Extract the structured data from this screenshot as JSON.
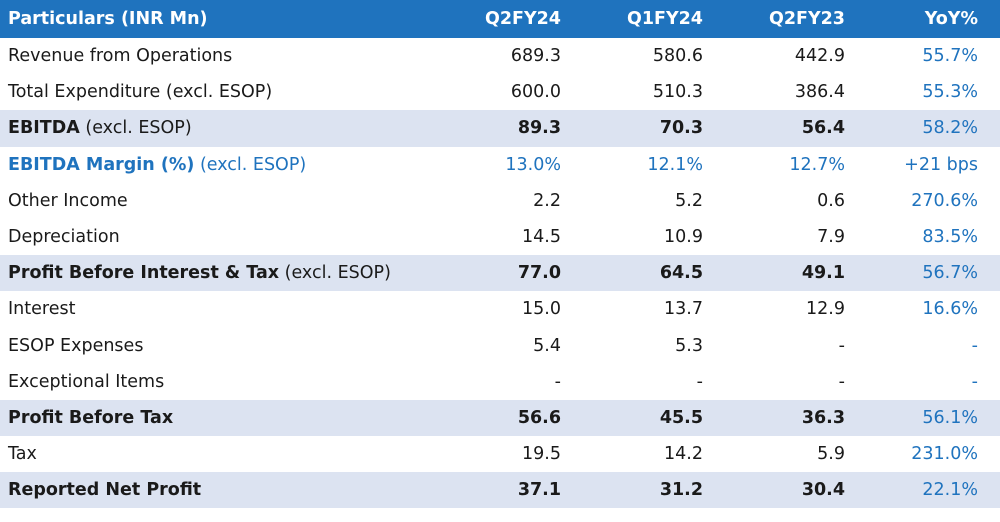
{
  "header": {
    "particulars": "Particulars (INR Mn)",
    "col1": "Q2FY24",
    "col2": "Q1FY24",
    "col3": "Q2FY23",
    "col4": "YoY%"
  },
  "rows": [
    {
      "label": "Revenue from Operations",
      "suffix": "",
      "v1": "689.3",
      "v2": "580.6",
      "v3": "442.9",
      "yoy": "55.7%"
    },
    {
      "label": "Total Expenditure (excl. ESOP)",
      "suffix": "",
      "v1": "600.0",
      "v2": "510.3",
      "v3": "386.4",
      "yoy": "55.3%"
    },
    {
      "label": "EBITDA",
      "suffix": " (excl. ESOP)",
      "v1": "89.3",
      "v2": "70.3",
      "v3": "56.4",
      "yoy": "58.2%"
    },
    {
      "label": "EBITDA Margin (%)",
      "suffix": " (excl. ESOP)",
      "v1": "13.0%",
      "v2": "12.1%",
      "v3": "12.7%",
      "yoy": "+21 bps"
    },
    {
      "label": "Other Income",
      "suffix": "",
      "v1": "2.2",
      "v2": "5.2",
      "v3": "0.6",
      "yoy": "270.6%"
    },
    {
      "label": "Depreciation",
      "suffix": "",
      "v1": "14.5",
      "v2": "10.9",
      "v3": "7.9",
      "yoy": "83.5%"
    },
    {
      "label": "Profit Before Interest & Tax",
      "suffix": " (excl. ESOP)",
      "v1": "77.0",
      "v2": "64.5",
      "v3": "49.1",
      "yoy": "56.7%"
    },
    {
      "label": "Interest",
      "suffix": "",
      "v1": "15.0",
      "v2": "13.7",
      "v3": "12.9",
      "yoy": "16.6%"
    },
    {
      "label": "ESOP Expenses",
      "suffix": "",
      "v1": "5.4",
      "v2": "5.3",
      "v3": "-",
      "yoy": "-"
    },
    {
      "label": "Exceptional Items",
      "suffix": "",
      "v1": "-",
      "v2": "-",
      "v3": "-",
      "yoy": "-"
    },
    {
      "label": "Profit Before Tax",
      "suffix": "",
      "v1": "56.6",
      "v2": "45.5",
      "v3": "36.3",
      "yoy": "56.1%"
    },
    {
      "label": "Tax",
      "suffix": "",
      "v1": "19.5",
      "v2": "14.2",
      "v3": "5.9",
      "yoy": "231.0%"
    },
    {
      "label": "Reported Net Profit",
      "suffix": "",
      "v1": "37.1",
      "v2": "31.2",
      "v3": "30.4",
      "yoy": "22.1%"
    }
  ],
  "colors": {
    "header_bg": "#1f73be",
    "shaded_bg": "#dce3f1",
    "accent": "#1f73be"
  }
}
